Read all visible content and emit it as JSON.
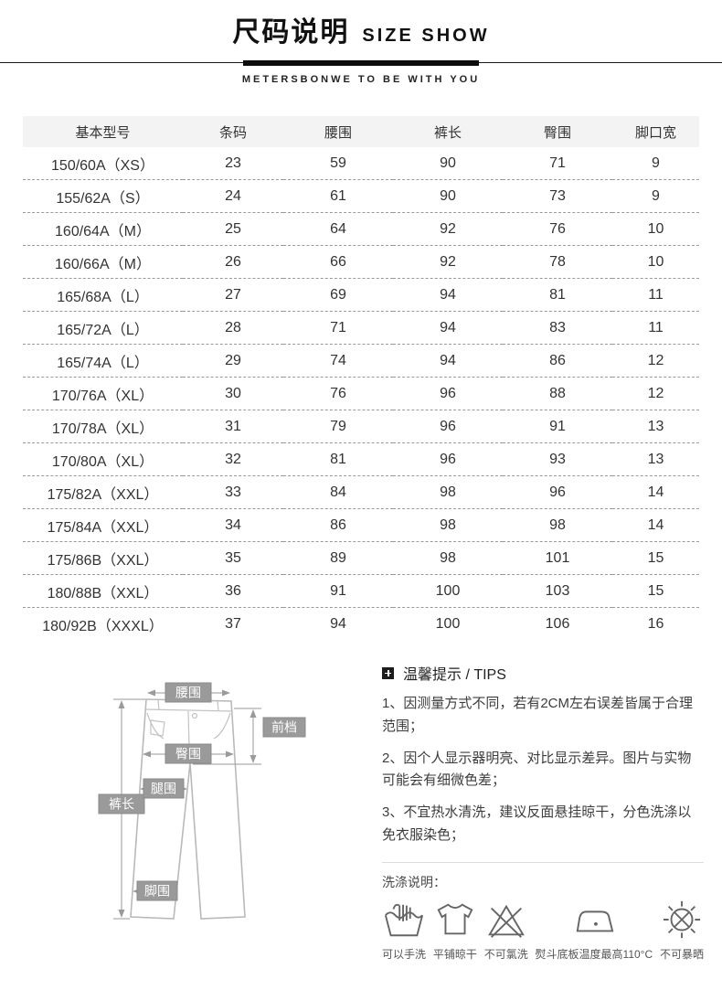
{
  "header": {
    "title_cn": "尺码说明",
    "title_en": "SIZE SHOW",
    "brand_line": "METERSBONWE TO BE WITH YOU"
  },
  "size_table": {
    "columns": [
      "基本型号",
      "条码",
      "腰围",
      "裤长",
      "臀围",
      "脚口宽"
    ],
    "rows": [
      [
        "150/60A（XS）",
        "23",
        "59",
        "90",
        "71",
        "9"
      ],
      [
        "155/62A（S）",
        "24",
        "61",
        "90",
        "73",
        "9"
      ],
      [
        "160/64A（M）",
        "25",
        "64",
        "92",
        "76",
        "10"
      ],
      [
        "160/66A（M）",
        "26",
        "66",
        "92",
        "78",
        "10"
      ],
      [
        "165/68A（L）",
        "27",
        "69",
        "94",
        "81",
        "11"
      ],
      [
        "165/72A（L）",
        "28",
        "71",
        "94",
        "83",
        "11"
      ],
      [
        "165/74A（L）",
        "29",
        "74",
        "94",
        "86",
        "12"
      ],
      [
        "170/76A（XL）",
        "30",
        "76",
        "96",
        "88",
        "12"
      ],
      [
        "170/78A（XL）",
        "31",
        "79",
        "96",
        "91",
        "13"
      ],
      [
        "170/80A（XL）",
        "32",
        "81",
        "96",
        "93",
        "13"
      ],
      [
        "175/82A（XXL）",
        "33",
        "84",
        "98",
        "96",
        "14"
      ],
      [
        "175/84A（XXL）",
        "34",
        "86",
        "98",
        "98",
        "14"
      ],
      [
        "175/86B（XXL）",
        "35",
        "89",
        "98",
        "101",
        "15"
      ],
      [
        "180/88B（XXL）",
        "36",
        "91",
        "100",
        "103",
        "15"
      ],
      [
        "180/92B（XXXL）",
        "37",
        "94",
        "100",
        "106",
        "16"
      ]
    ]
  },
  "diagram": {
    "labels": {
      "waist": "腰围",
      "front_rise": "前档",
      "hip": "臀围",
      "thigh": "腿围",
      "pants_length": "裤长",
      "leg_opening": "脚围"
    }
  },
  "tips": {
    "heading": "温馨提示 / TIPS",
    "items": [
      "1、因测量方式不同，若有2CM左右误差皆属于合理范围；",
      "2、因个人显示器明亮、对比显示差异。图片与实物可能会有细微色差；",
      "3、不宜热水清洗，建议反面悬挂晾干，分色洗涤以免衣服染色；"
    ]
  },
  "washing": {
    "heading": "洗涤说明：",
    "items": [
      {
        "icon": "hand-wash-icon",
        "label": "可以手洗"
      },
      {
        "icon": "flat-dry-icon",
        "label": "平铺晾干"
      },
      {
        "icon": "no-bleach-icon",
        "label": "不可氯洗"
      },
      {
        "icon": "iron-max-110-icon",
        "label": "熨斗底板温度最高110°C"
      },
      {
        "icon": "no-sun-icon",
        "label": "不可暴晒"
      }
    ]
  },
  "colors": {
    "accent_black": "#111111",
    "table_header_bg": "#f3f3f3",
    "dash_line": "#9a9a9a",
    "label_box": "#9a9a9a",
    "icon_stroke": "#666666",
    "divider_light": "#dcdcdc"
  }
}
